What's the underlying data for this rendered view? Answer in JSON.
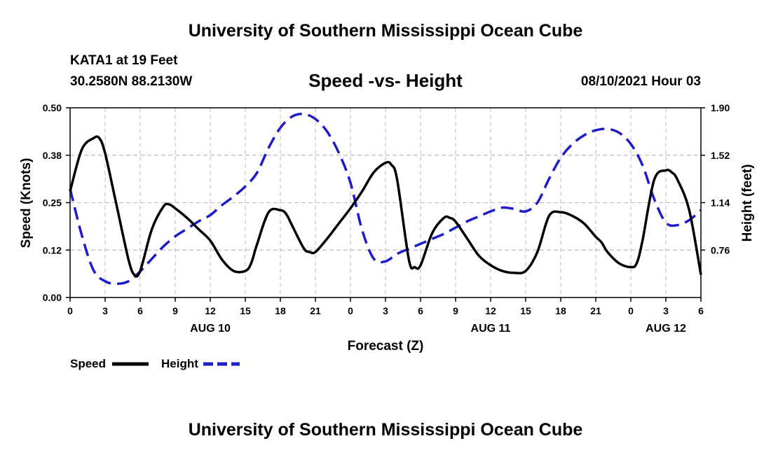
{
  "header": {
    "title": "University of Southern Mississippi Ocean Cube",
    "station_name": "KATA1 at 19 Feet",
    "station_coords": "30.2580N  88.2130W",
    "chart_title": "Speed -vs- Height",
    "datetime": "08/10/2021 Hour 03"
  },
  "footer": {
    "title": "University of Southern Mississippi Ocean Cube"
  },
  "colors": {
    "speed": "#000000",
    "height": "#1c1ccc",
    "grid": "#bbbbbb"
  },
  "chart_data": {
    "type": "line",
    "title": "Speed -vs- Height",
    "xlabel": "Forecast (Z)",
    "ylabel": "Speed (Knots)",
    "y2label": "Height (feet)",
    "xlim": [
      0,
      54
    ],
    "ylim": [
      0,
      0.5
    ],
    "y2lim": [
      0.38,
      1.9
    ],
    "x_ticks": [
      0,
      3,
      6,
      9,
      12,
      15,
      18,
      21,
      24,
      27,
      30,
      33,
      36,
      39,
      42,
      45,
      48,
      51,
      54
    ],
    "x_tick_labels": [
      "0",
      "3",
      "6",
      "9",
      "12",
      "15",
      "18",
      "21",
      "0",
      "3",
      "6",
      "9",
      "12",
      "15",
      "18",
      "21",
      "0",
      "3",
      "6"
    ],
    "y_ticks": [
      0,
      0.125,
      0.25,
      0.375,
      0.5
    ],
    "y_tick_labels": [
      "0.00",
      "0.12",
      "0.25",
      "0.38",
      "0.50"
    ],
    "y2_ticks": [
      0.76,
      1.14,
      1.52,
      1.9
    ],
    "y2_tick_labels": [
      "0.76",
      "1.14",
      "1.52",
      "1.90"
    ],
    "date_labels": [
      {
        "x": 12,
        "label": "AUG 10"
      },
      {
        "x": 36,
        "label": "AUG 11"
      },
      {
        "x": 51,
        "label": "AUG 12"
      }
    ],
    "grid": true,
    "legend": {
      "position": "bottom-left",
      "entries": [
        "Speed",
        "Height"
      ]
    },
    "series": [
      {
        "name": "Speed",
        "axis": "left",
        "style": "solid",
        "x": [
          0,
          1,
          2,
          2.5,
          3,
          4,
          5,
          5.5,
          6,
          7,
          8,
          8.5,
          9,
          10,
          11,
          12,
          13,
          14,
          15,
          15.5,
          16,
          17,
          18,
          18.5,
          19,
          20,
          20.5,
          21,
          22,
          23,
          24,
          25,
          26,
          27,
          27.5,
          28,
          29,
          29.5,
          30,
          31,
          32,
          32.5,
          33,
          34,
          35,
          36,
          37,
          38,
          39,
          40,
          41,
          42,
          43,
          44,
          45,
          45.5,
          46,
          47,
          48,
          48.5,
          49,
          50,
          51,
          51.5,
          52,
          53,
          54
        ],
        "values": [
          0.28,
          0.39,
          0.42,
          0.42,
          0.38,
          0.24,
          0.1,
          0.06,
          0.07,
          0.18,
          0.24,
          0.245,
          0.235,
          0.21,
          0.18,
          0.15,
          0.1,
          0.07,
          0.07,
          0.09,
          0.14,
          0.225,
          0.23,
          0.22,
          0.19,
          0.13,
          0.12,
          0.12,
          0.155,
          0.195,
          0.235,
          0.28,
          0.33,
          0.355,
          0.35,
          0.31,
          0.1,
          0.08,
          0.085,
          0.17,
          0.21,
          0.21,
          0.2,
          0.155,
          0.11,
          0.085,
          0.07,
          0.065,
          0.07,
          0.12,
          0.215,
          0.225,
          0.215,
          0.195,
          0.16,
          0.145,
          0.12,
          0.09,
          0.08,
          0.09,
          0.15,
          0.31,
          0.335,
          0.33,
          0.31,
          0.23,
          0.06
        ]
      },
      {
        "name": "Height",
        "axis": "right",
        "style": "dashed",
        "x": [
          0,
          1,
          2,
          3,
          4,
          5,
          6,
          7,
          8,
          9,
          10,
          11,
          12,
          13,
          14,
          15,
          16,
          17,
          18,
          19,
          20,
          21,
          22,
          23,
          24,
          25,
          26,
          27,
          28,
          29,
          30,
          31,
          32,
          33,
          34,
          35,
          36,
          37,
          38,
          39,
          40,
          41,
          42,
          43,
          44,
          45,
          46,
          47,
          48,
          49,
          50,
          51,
          52,
          53,
          54
        ],
        "values": [
          1.25,
          0.88,
          0.6,
          0.51,
          0.49,
          0.51,
          0.59,
          0.69,
          0.79,
          0.87,
          0.93,
          0.99,
          1.04,
          1.12,
          1.19,
          1.27,
          1.38,
          1.58,
          1.74,
          1.83,
          1.85,
          1.81,
          1.71,
          1.54,
          1.3,
          0.92,
          0.69,
          0.67,
          0.73,
          0.77,
          0.81,
          0.85,
          0.89,
          0.94,
          0.99,
          1.03,
          1.07,
          1.1,
          1.09,
          1.07,
          1.14,
          1.33,
          1.5,
          1.61,
          1.68,
          1.72,
          1.73,
          1.7,
          1.61,
          1.44,
          1.17,
          0.98,
          0.96,
          1.0,
          1.08
        ]
      }
    ]
  }
}
